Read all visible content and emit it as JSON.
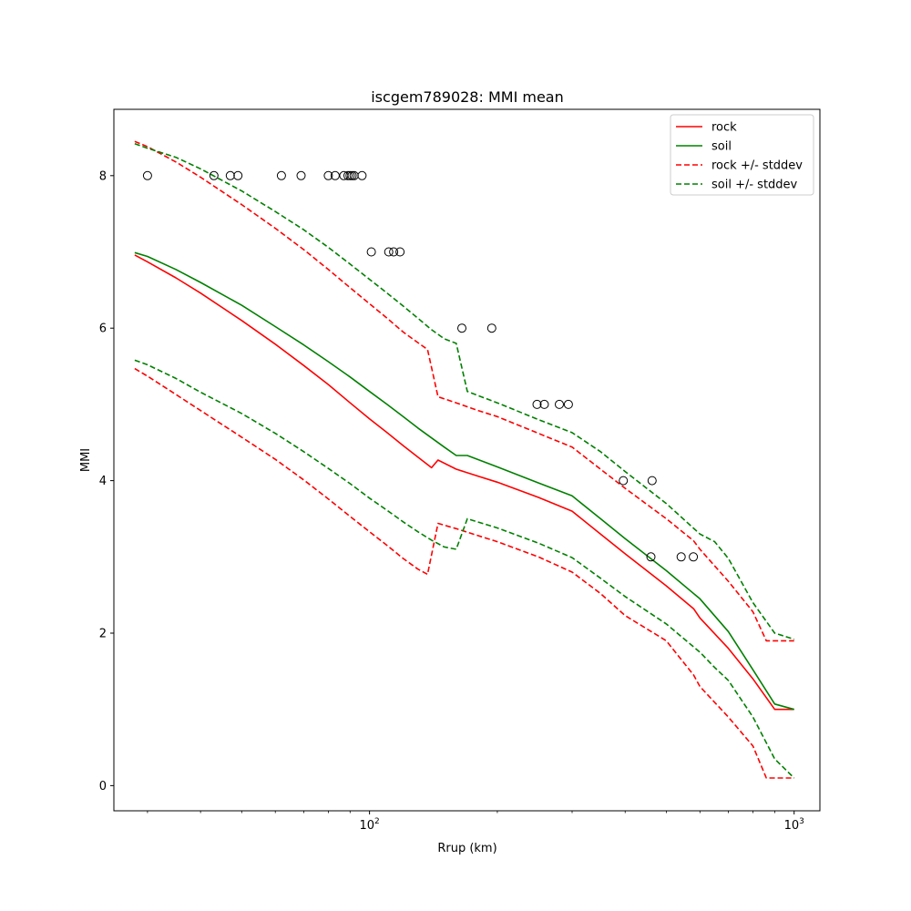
{
  "chart_data": {
    "type": "line",
    "title": "iscgem789028: MMI mean",
    "xlabel": "Rrup (km)",
    "ylabel": "MMI",
    "xscale": "log",
    "xlim": [
      25.0,
      1150.0
    ],
    "ylim": [
      -0.33,
      8.87
    ],
    "grid": false,
    "legend_position": "top-right",
    "y_ticks": [
      0,
      2,
      4,
      6,
      8
    ],
    "x_major_ticks": [
      {
        "value": 100,
        "base": "10",
        "exp": "2"
      },
      {
        "value": 1000,
        "base": "10",
        "exp": "3"
      }
    ],
    "x_minor_ticks": [
      30,
      40,
      50,
      60,
      70,
      80,
      90,
      200,
      300,
      400,
      500,
      600,
      700,
      800,
      900
    ],
    "series": [
      {
        "name": "rock",
        "color": "#ff0000",
        "dashed": false,
        "x": [
          28,
          30,
          35,
          40,
          50,
          60,
          70,
          80,
          90,
          100,
          110,
          120,
          130,
          140,
          145,
          160,
          180,
          200,
          250,
          300,
          350,
          400,
          500,
          580,
          600,
          700,
          800,
          900,
          1000
        ],
        "y": [
          6.96,
          6.87,
          6.66,
          6.46,
          6.1,
          5.79,
          5.51,
          5.26,
          5.02,
          4.81,
          4.63,
          4.46,
          4.31,
          4.17,
          4.27,
          4.15,
          4.06,
          3.98,
          3.78,
          3.6,
          3.3,
          3.04,
          2.62,
          2.32,
          2.2,
          1.8,
          1.4,
          1.0,
          1.0
        ]
      },
      {
        "name": "soil",
        "color": "#008000",
        "dashed": false,
        "x": [
          28,
          30,
          35,
          40,
          50,
          60,
          70,
          80,
          90,
          100,
          110,
          120,
          130,
          140,
          150,
          160,
          170,
          200,
          250,
          300,
          350,
          400,
          500,
          600,
          700,
          800,
          900,
          1000
        ],
        "y": [
          6.99,
          6.94,
          6.77,
          6.6,
          6.3,
          6.02,
          5.78,
          5.56,
          5.36,
          5.17,
          5.0,
          4.84,
          4.69,
          4.56,
          4.44,
          4.33,
          4.33,
          4.18,
          3.97,
          3.8,
          3.5,
          3.24,
          2.82,
          2.45,
          2.02,
          1.52,
          1.07,
          1.0
        ]
      },
      {
        "name": "rock +/- stddev",
        "color": "#ff0000",
        "dashed": true,
        "x": [
          28,
          30,
          35,
          40,
          50,
          60,
          70,
          80,
          90,
          100,
          110,
          120,
          130,
          137,
          145,
          160,
          180,
          200,
          250,
          300,
          350,
          400,
          500,
          580,
          600,
          700,
          800,
          860,
          1000
        ],
        "y": [
          8.45,
          8.38,
          8.18,
          7.98,
          7.62,
          7.31,
          7.03,
          6.77,
          6.53,
          6.32,
          6.13,
          5.95,
          5.81,
          5.72,
          5.1,
          5.02,
          4.92,
          4.84,
          4.62,
          4.44,
          4.15,
          3.9,
          3.5,
          3.21,
          3.1,
          2.68,
          2.28,
          1.9,
          1.9
        ]
      },
      {
        "name": "rock +/- stddev (lower)",
        "color": "#ff0000",
        "dashed": true,
        "legend": false,
        "x": [
          28,
          30,
          35,
          40,
          50,
          60,
          70,
          80,
          90,
          100,
          110,
          120,
          130,
          137,
          145,
          160,
          180,
          200,
          250,
          300,
          350,
          400,
          500,
          580,
          600,
          700,
          800,
          860,
          1000
        ],
        "y": [
          5.47,
          5.37,
          5.13,
          4.92,
          4.57,
          4.28,
          4.01,
          3.76,
          3.53,
          3.33,
          3.15,
          2.98,
          2.84,
          2.77,
          3.44,
          3.37,
          3.28,
          3.2,
          3.0,
          2.8,
          2.52,
          2.23,
          1.9,
          1.45,
          1.3,
          0.9,
          0.52,
          0.1,
          0.1
        ]
      },
      {
        "name": "soil +/- stddev",
        "color": "#008000",
        "dashed": true,
        "x": [
          28,
          30,
          35,
          40,
          50,
          60,
          70,
          80,
          90,
          100,
          110,
          120,
          130,
          140,
          150,
          160,
          170,
          200,
          250,
          300,
          350,
          400,
          500,
          600,
          650,
          700,
          800,
          900,
          1000
        ],
        "y": [
          8.42,
          8.36,
          8.24,
          8.09,
          7.8,
          7.53,
          7.29,
          7.06,
          6.84,
          6.64,
          6.46,
          6.29,
          6.13,
          5.98,
          5.86,
          5.8,
          5.17,
          5.02,
          4.8,
          4.63,
          4.38,
          4.12,
          3.7,
          3.3,
          3.2,
          2.98,
          2.4,
          2.0,
          1.92
        ]
      },
      {
        "name": "soil +/- stddev (lower)",
        "color": "#008000",
        "dashed": true,
        "legend": false,
        "x": [
          28,
          30,
          35,
          40,
          50,
          60,
          70,
          80,
          90,
          100,
          110,
          120,
          130,
          140,
          150,
          160,
          170,
          200,
          250,
          300,
          350,
          400,
          500,
          600,
          650,
          700,
          800,
          900,
          1000
        ],
        "y": [
          5.58,
          5.52,
          5.34,
          5.16,
          4.88,
          4.62,
          4.38,
          4.16,
          3.96,
          3.77,
          3.61,
          3.46,
          3.33,
          3.22,
          3.13,
          3.1,
          3.5,
          3.38,
          3.18,
          2.99,
          2.72,
          2.48,
          2.12,
          1.75,
          1.55,
          1.38,
          0.9,
          0.35,
          0.1
        ]
      }
    ],
    "observations": {
      "name": "observed MMI",
      "marker": "open-circle",
      "points": [
        {
          "x": 30,
          "y": 8
        },
        {
          "x": 43,
          "y": 8
        },
        {
          "x": 47,
          "y": 8
        },
        {
          "x": 49,
          "y": 8
        },
        {
          "x": 62,
          "y": 8
        },
        {
          "x": 69,
          "y": 8
        },
        {
          "x": 80,
          "y": 8
        },
        {
          "x": 83,
          "y": 8
        },
        {
          "x": 87,
          "y": 8
        },
        {
          "x": 89,
          "y": 8
        },
        {
          "x": 90,
          "y": 8
        },
        {
          "x": 91,
          "y": 8
        },
        {
          "x": 92,
          "y": 8
        },
        {
          "x": 96,
          "y": 8
        },
        {
          "x": 101,
          "y": 7
        },
        {
          "x": 111,
          "y": 7
        },
        {
          "x": 114,
          "y": 7
        },
        {
          "x": 118,
          "y": 7
        },
        {
          "x": 165,
          "y": 6
        },
        {
          "x": 194,
          "y": 6
        },
        {
          "x": 248,
          "y": 5
        },
        {
          "x": 258,
          "y": 5
        },
        {
          "x": 280,
          "y": 5
        },
        {
          "x": 294,
          "y": 5
        },
        {
          "x": 396,
          "y": 4
        },
        {
          "x": 463,
          "y": 4
        },
        {
          "x": 460,
          "y": 3
        },
        {
          "x": 542,
          "y": 3
        },
        {
          "x": 579,
          "y": 3
        }
      ]
    }
  }
}
